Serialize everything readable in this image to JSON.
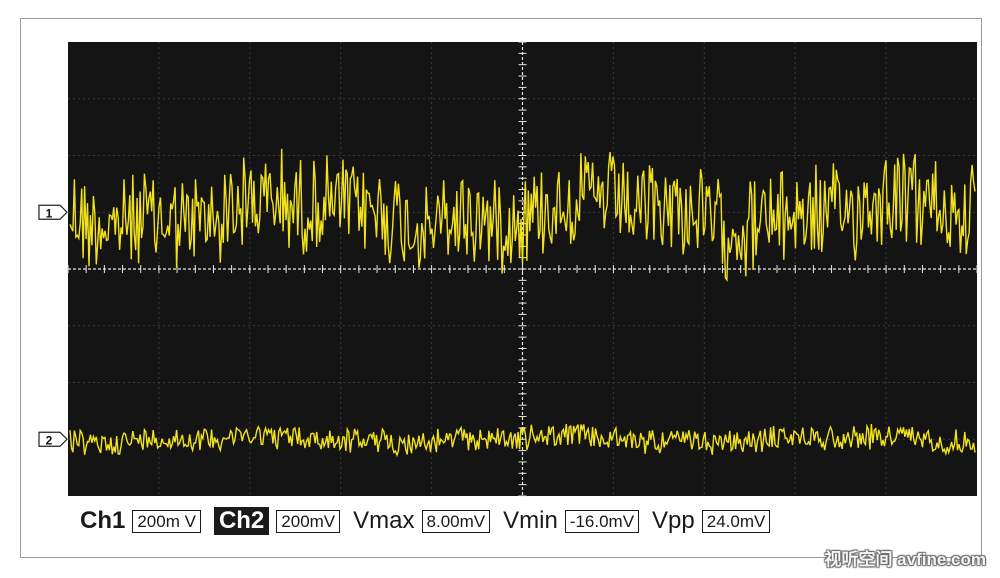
{
  "chart_data": {
    "type": "line",
    "title": "",
    "xlabel": "",
    "ylabel": "",
    "grid": true,
    "grid_divisions": {
      "horizontal": 10,
      "vertical": 8
    },
    "series": [
      {
        "marker": "1",
        "color": "#f2e21c",
        "offset_div": 5.0,
        "peak_to_peak_div": 2.0
      },
      {
        "marker": "2",
        "color": "#f2e21c",
        "offset_div": 1.0,
        "peak_to_peak_div": 0.5
      }
    ]
  },
  "colors": {
    "screen": "#141414",
    "grid": "#3c3c3c",
    "axis": "#e6e6e6",
    "trace": "#f2e21c"
  },
  "readout": {
    "ch1_label": "Ch1",
    "ch1_scale": "200m V",
    "ch2_label": "Ch2",
    "ch2_scale": "200mV",
    "vmax_label": "Vmax",
    "vmax_value": "8.00mV",
    "vmin_label": "Vmin",
    "vmin_value": "-16.0mV",
    "vpp_label": "Vpp",
    "vpp_value": "24.0mV"
  },
  "watermark": "视听空间 avfine.com"
}
